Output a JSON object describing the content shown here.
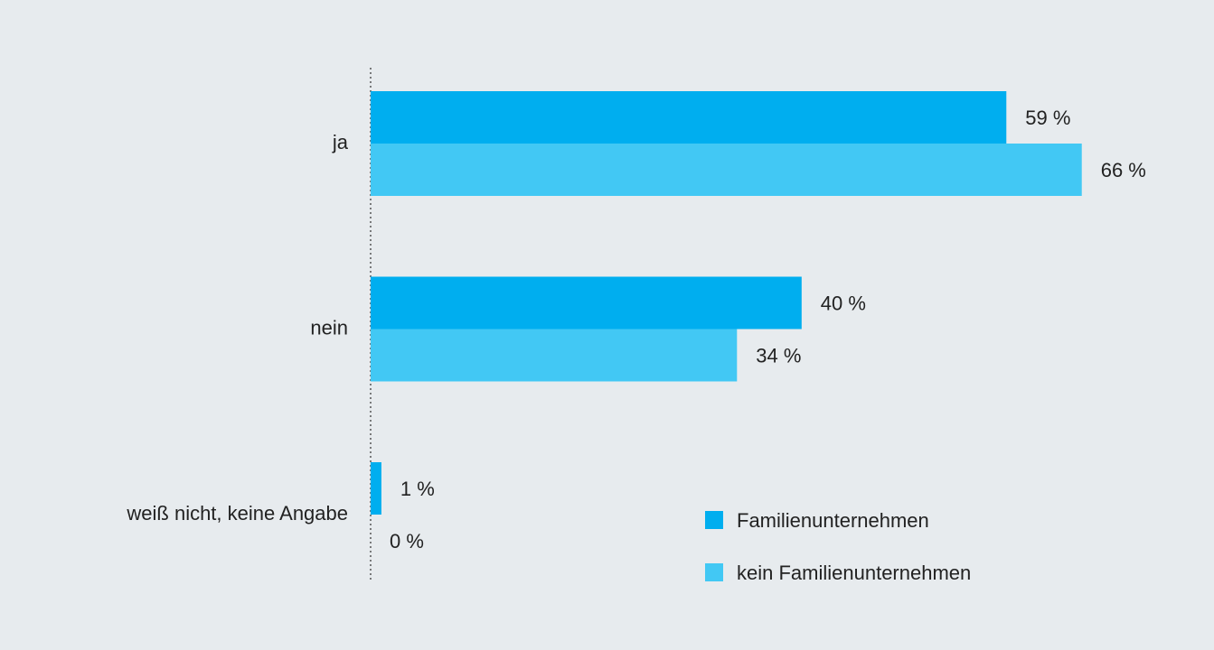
{
  "chart_data": {
    "type": "barh",
    "categories": [
      "ja",
      "nein",
      "weiß nicht, keine Angabe"
    ],
    "series": [
      {
        "name": "Familienunternehmen",
        "color": "#00aeef",
        "values": [
          59,
          40,
          1
        ],
        "value_labels": [
          "59 %",
          "40 %",
          "1 %"
        ]
      },
      {
        "name": "kein Familienunternehmen",
        "color": "#42c8f4",
        "values": [
          66,
          34,
          0
        ],
        "value_labels": [
          "66 %",
          "34 %",
          "0 %"
        ]
      }
    ],
    "legend": "lower right"
  }
}
